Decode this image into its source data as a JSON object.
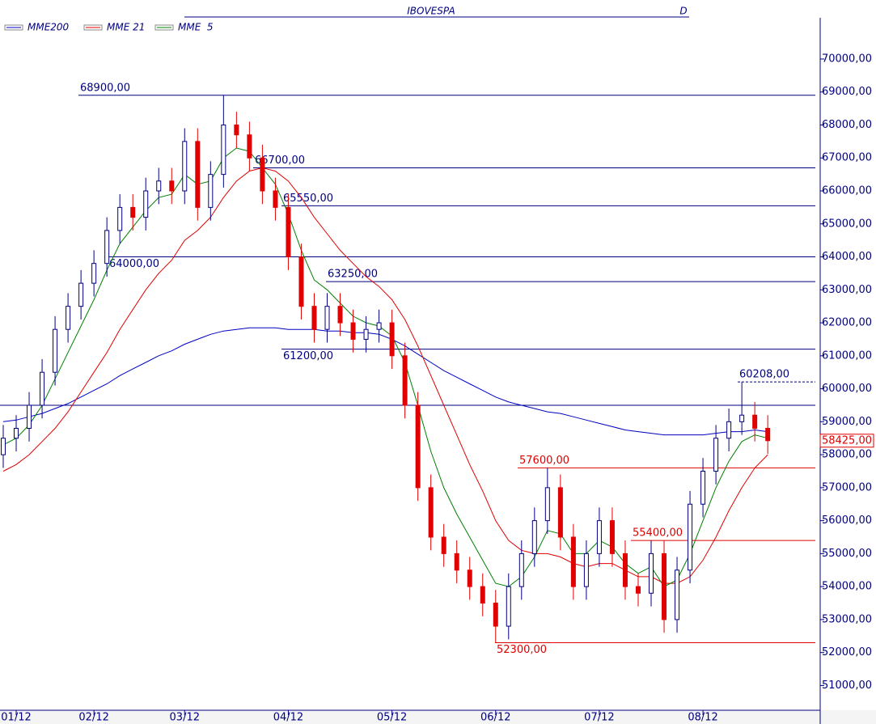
{
  "chart_data": {
    "type": "candlestick",
    "title": "IBOVESPA",
    "period": "D",
    "categories": [
      null,
      "01/12",
      null,
      null,
      null,
      null,
      null,
      "02/12",
      null,
      null,
      null,
      null,
      null,
      null,
      "03/12",
      null,
      null,
      null,
      null,
      null,
      null,
      null,
      "04/12",
      null,
      null,
      null,
      null,
      null,
      null,
      null,
      "05/12",
      null,
      null,
      null,
      null,
      null,
      null,
      null,
      "06/12",
      null,
      null,
      null,
      null,
      null,
      null,
      null,
      "07/12",
      null,
      null,
      null,
      null,
      null,
      null,
      null,
      "08/12",
      null,
      null,
      null,
      null,
      null
    ],
    "candles": {
      "open": [
        58000,
        58500,
        58800,
        59500,
        60500,
        61800,
        62500,
        63200,
        63800,
        64800,
        65500,
        65200,
        66000,
        66300,
        66000,
        67500,
        65500,
        66500,
        68000,
        67700,
        67000,
        66000,
        65500,
        64000,
        62500,
        61800,
        62500,
        62000,
        61500,
        61800,
        62000,
        61000,
        59500,
        57000,
        55500,
        55000,
        54500,
        54000,
        53500,
        52800,
        54000,
        55000,
        56000,
        57000,
        55500,
        54000,
        55000,
        56000,
        55000,
        54000,
        53800,
        55000,
        53000,
        54500,
        56500,
        57500,
        58500,
        59000,
        59200,
        58800
      ],
      "high": [
        58900,
        59200,
        59900,
        60900,
        62200,
        62900,
        63600,
        64200,
        65200,
        65900,
        65900,
        66400,
        66700,
        66700,
        67900,
        67900,
        66900,
        68900,
        68400,
        68100,
        67400,
        66400,
        65900,
        64400,
        62900,
        62900,
        62900,
        62400,
        62200,
        62400,
        62400,
        61400,
        59900,
        57400,
        55900,
        55400,
        54900,
        54400,
        53900,
        54400,
        55400,
        56400,
        57600,
        57400,
        55900,
        55400,
        56400,
        56400,
        55400,
        54400,
        55400,
        55400,
        54900,
        56900,
        57900,
        58900,
        59400,
        60208,
        59600,
        59200
      ],
      "low": [
        57600,
        58100,
        58400,
        59100,
        60100,
        61400,
        62100,
        62800,
        63400,
        64400,
        64800,
        64800,
        65600,
        65600,
        65600,
        65100,
        65100,
        66100,
        67300,
        66600,
        65600,
        65100,
        63600,
        62100,
        61400,
        61400,
        61600,
        61100,
        61100,
        61400,
        60600,
        59100,
        56600,
        55100,
        54600,
        54100,
        53600,
        53100,
        52300,
        52400,
        53600,
        54600,
        55600,
        55100,
        53600,
        53600,
        54600,
        54600,
        53600,
        53400,
        53400,
        52600,
        52600,
        54100,
        56100,
        57100,
        58100,
        58600,
        58400,
        58025
      ],
      "close": [
        58500,
        58800,
        59500,
        60500,
        61800,
        62500,
        63200,
        63800,
        64800,
        65500,
        65200,
        66000,
        66300,
        66000,
        67500,
        65500,
        66500,
        68000,
        67700,
        67000,
        66000,
        65500,
        64000,
        62500,
        61800,
        62500,
        62000,
        61500,
        61800,
        62000,
        61000,
        59500,
        57000,
        55500,
        55000,
        54500,
        54000,
        53500,
        52800,
        54000,
        55000,
        56000,
        57000,
        55500,
        54000,
        55000,
        56000,
        55000,
        54000,
        53800,
        55000,
        53000,
        54500,
        56500,
        57500,
        58500,
        59000,
        59200,
        58800,
        58425
      ]
    },
    "up_color": "#ffffff",
    "up_edge": "#000080",
    "down_color": "#e00000",
    "series": [
      {
        "name": "MME200",
        "color": "#0000c0",
        "values": [
          59000,
          59050,
          59150,
          59250,
          59400,
          59550,
          59750,
          59950,
          60150,
          60400,
          60600,
          60800,
          61000,
          61150,
          61350,
          61500,
          61650,
          61750,
          61800,
          61850,
          61850,
          61850,
          61800,
          61800,
          61800,
          61750,
          61750,
          61700,
          61700,
          61650,
          61500,
          61300,
          61050,
          60800,
          60550,
          60350,
          60150,
          59950,
          59750,
          59600,
          59500,
          59400,
          59300,
          59250,
          59150,
          59050,
          58950,
          58850,
          58750,
          58700,
          58650,
          58600,
          58600,
          58600,
          58600,
          58650,
          58700,
          58700,
          58750,
          58700
        ]
      },
      {
        "name": "MME 21",
        "color": "#e00000",
        "values": [
          57500,
          57700,
          58000,
          58400,
          58800,
          59300,
          59900,
          60500,
          61100,
          61800,
          62400,
          63000,
          63500,
          63900,
          64500,
          64800,
          65200,
          65800,
          66300,
          66600,
          66700,
          66600,
          66300,
          65800,
          65200,
          64700,
          64200,
          63800,
          63400,
          63100,
          62700,
          62100,
          61300,
          60400,
          59500,
          58600,
          57700,
          56900,
          56000,
          55400,
          55100,
          55000,
          55000,
          54900,
          54700,
          54600,
          54700,
          54700,
          54500,
          54300,
          54300,
          54100,
          54100,
          54300,
          54800,
          55500,
          56300,
          57000,
          57600,
          58000
        ]
      },
      {
        "name": "MME  5",
        "color": "#008000",
        "values": [
          58300,
          58500,
          58900,
          59500,
          60300,
          61100,
          61900,
          62700,
          63600,
          64400,
          64900,
          65400,
          65800,
          65900,
          66500,
          66200,
          66300,
          67000,
          67300,
          67200,
          66700,
          66200,
          65300,
          64200,
          63300,
          63000,
          62600,
          62200,
          62000,
          61900,
          61600,
          60800,
          59500,
          58100,
          57000,
          56200,
          55500,
          54800,
          54100,
          54000,
          54300,
          54900,
          55700,
          55600,
          55000,
          55000,
          55400,
          55200,
          54700,
          54400,
          54600,
          54000,
          54200,
          55000,
          56000,
          57000,
          57800,
          58400,
          58600,
          58500
        ]
      }
    ],
    "levels": [
      {
        "value": 68900,
        "label": "68900,00",
        "color": "#000080"
      },
      {
        "value": 66700,
        "label": "66700,00",
        "color": "#000080"
      },
      {
        "value": 65550,
        "label": "65550,00",
        "color": "#000080"
      },
      {
        "value": 64000,
        "label": "64000,00",
        "color": "#000080"
      },
      {
        "value": 63250,
        "label": "63250,00",
        "color": "#000080"
      },
      {
        "value": 61200,
        "label": "61200,00",
        "color": "#000080"
      },
      {
        "value": 60208,
        "label": "60208,00",
        "color": "#000080",
        "style": "dashed"
      },
      {
        "value": 59500,
        "color": "#000080"
      },
      {
        "value": 57600,
        "label": "57600,00",
        "color": "#e00000"
      },
      {
        "value": 55400,
        "label": "55400,00",
        "color": "#e00000"
      },
      {
        "value": 52300,
        "label": "52300,00",
        "color": "#e00000"
      }
    ],
    "last_price": {
      "value": 58425,
      "label": "58425,00",
      "color": "#e00000"
    },
    "ylim": [
      50250,
      71250
    ],
    "yticks": [
      {
        "value": 51000,
        "label": "51000,00"
      },
      {
        "value": 52000,
        "label": "52000,00"
      },
      {
        "value": 53000,
        "label": "53000,00"
      },
      {
        "value": 54000,
        "label": "54000,00"
      },
      {
        "value": 55000,
        "label": "55000,00"
      },
      {
        "value": 56000,
        "label": "56000,00"
      },
      {
        "value": 57000,
        "label": "57000,00"
      },
      {
        "value": 58000,
        "label": "58000,00"
      },
      {
        "value": 59000,
        "label": "59000,00"
      },
      {
        "value": 60000,
        "label": "60000,00"
      },
      {
        "value": 61000,
        "label": "61000,00"
      },
      {
        "value": 62000,
        "label": "62000,00"
      },
      {
        "value": 63000,
        "label": "63000,00"
      },
      {
        "value": 64000,
        "label": "64000,00"
      },
      {
        "value": 65000,
        "label": "65000,00"
      },
      {
        "value": 66000,
        "label": "66000,00"
      },
      {
        "value": 67000,
        "label": "67000,00"
      },
      {
        "value": 68000,
        "label": "68000,00"
      },
      {
        "value": 69000,
        "label": "69000,00"
      },
      {
        "value": 70000,
        "label": "70000,00"
      }
    ]
  }
}
